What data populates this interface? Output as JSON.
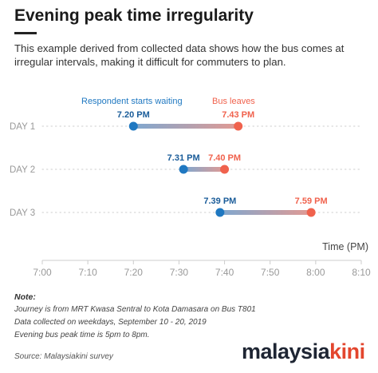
{
  "title": "Evening peak time irregularity",
  "subtitle": "This example derived from collected data shows how the bus comes at irregular intervals, making it difficult for commuters to plan.",
  "chart_data": {
    "type": "dumbbell",
    "x_axis": {
      "label": "Time (PM)",
      "range_minutes": [
        0,
        70
      ],
      "ticks": [
        "7:00",
        "7:10",
        "7:20",
        "7:30",
        "7:40",
        "7:50",
        "8:00",
        "8:10"
      ]
    },
    "legend": {
      "start": "Respondent starts waiting",
      "end": "Bus leaves"
    },
    "colors": {
      "start": "#1f78c1",
      "end": "#f0624d",
      "axis": "#cccccc",
      "grid": "#cccccc",
      "tick": "#999999"
    },
    "rows": [
      {
        "day": "DAY 1",
        "start": "7.20 PM",
        "end": "7.43 PM",
        "start_min": 20,
        "end_min": 43
      },
      {
        "day": "DAY 2",
        "start": "7.31 PM",
        "end": "7.40 PM",
        "start_min": 31,
        "end_min": 40
      },
      {
        "day": "DAY 3",
        "start": "7.39 PM",
        "end": "7.59 PM",
        "start_min": 39,
        "end_min": 59
      }
    ]
  },
  "notes": {
    "heading": "Note:",
    "lines": [
      "Journey is from MRT Kwasa Sentral to Kota Damasara on Bus T801",
      "Data collected on weekdays, September 10 - 20, 2019",
      "Evening bus peak time is 5pm to 8pm."
    ]
  },
  "source": "Source: Malaysiakini survey",
  "logo": {
    "part1": "malaysia",
    "part2": "kini"
  }
}
